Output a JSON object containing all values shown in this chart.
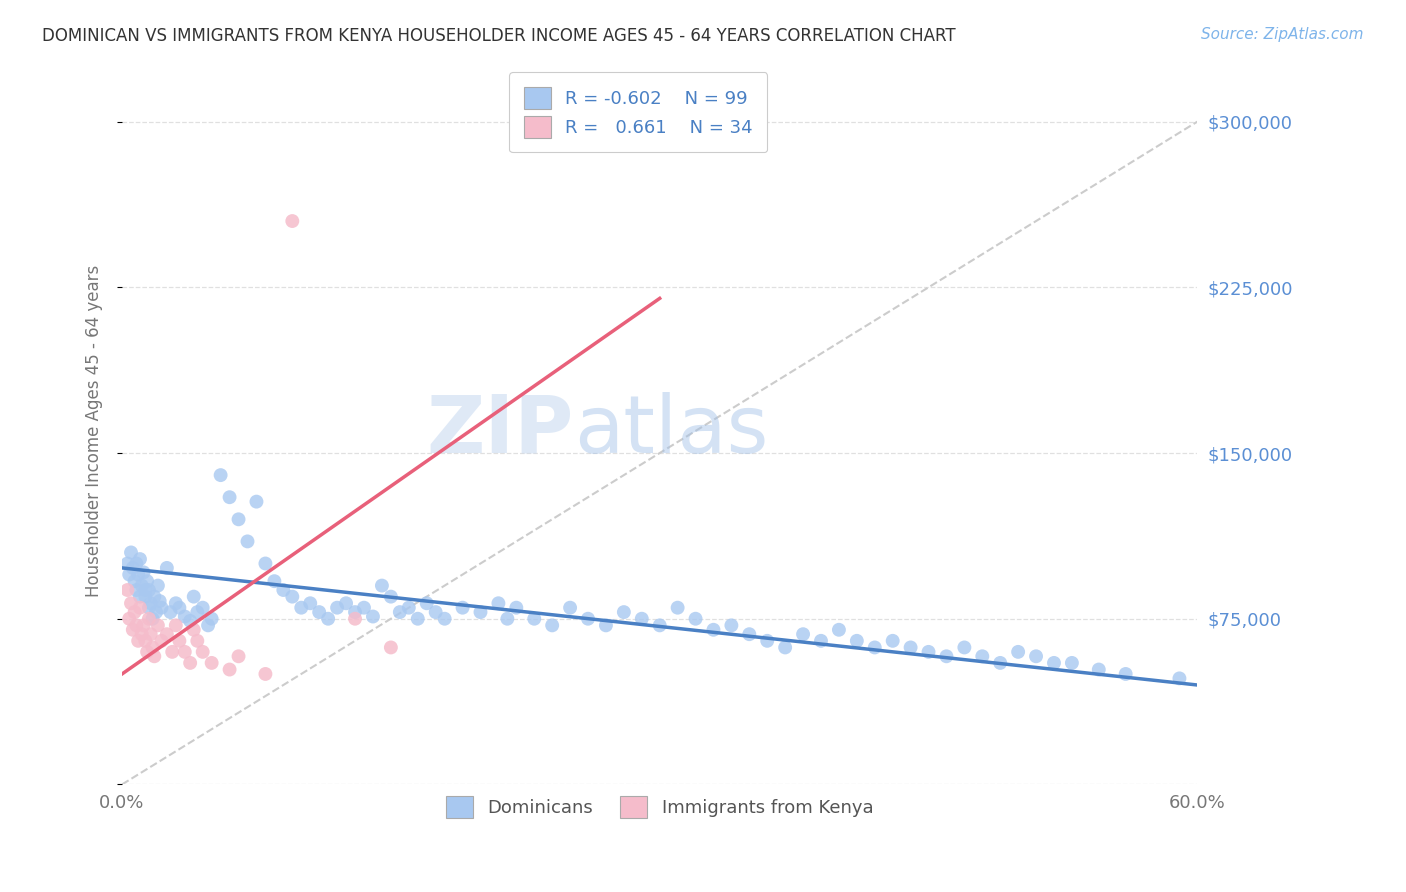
{
  "title": "DOMINICAN VS IMMIGRANTS FROM KENYA HOUSEHOLDER INCOME AGES 45 - 64 YEARS CORRELATION CHART",
  "source": "Source: ZipAtlas.com",
  "ylabel": "Householder Income Ages 45 - 64 years",
  "xlim": [
    0.0,
    0.6
  ],
  "ylim": [
    0,
    320000
  ],
  "yticks": [
    0,
    75000,
    150000,
    225000,
    300000
  ],
  "ytick_labels": [
    "",
    "$75,000",
    "$150,000",
    "$225,000",
    "$300,000"
  ],
  "xticks": [
    0.0,
    0.1,
    0.2,
    0.3,
    0.4,
    0.5,
    0.6
  ],
  "watermark_zip": "ZIP",
  "watermark_atlas": "atlas",
  "blue_scatter_color": "#A8C8F0",
  "pink_scatter_color": "#F5BCCB",
  "blue_line_color": "#4A80C4",
  "pink_line_color": "#E8607A",
  "ref_line_color": "#CCCCCC",
  "grid_color": "#DDDDDD",
  "background_color": "#FFFFFF",
  "title_color": "#333333",
  "source_color": "#7EB4EA",
  "ylabel_color": "#777777",
  "tick_color": "#777777",
  "right_tick_color": "#5B8FD4",
  "dominican_x": [
    0.003,
    0.004,
    0.005,
    0.006,
    0.007,
    0.008,
    0.008,
    0.009,
    0.01,
    0.01,
    0.011,
    0.012,
    0.013,
    0.013,
    0.014,
    0.015,
    0.015,
    0.016,
    0.017,
    0.018,
    0.019,
    0.02,
    0.021,
    0.022,
    0.025,
    0.027,
    0.03,
    0.032,
    0.035,
    0.038,
    0.04,
    0.042,
    0.045,
    0.048,
    0.05,
    0.055,
    0.06,
    0.065,
    0.07,
    0.075,
    0.08,
    0.085,
    0.09,
    0.095,
    0.1,
    0.105,
    0.11,
    0.115,
    0.12,
    0.125,
    0.13,
    0.135,
    0.14,
    0.145,
    0.15,
    0.155,
    0.16,
    0.165,
    0.17,
    0.175,
    0.18,
    0.19,
    0.2,
    0.21,
    0.215,
    0.22,
    0.23,
    0.24,
    0.25,
    0.26,
    0.27,
    0.28,
    0.29,
    0.3,
    0.31,
    0.32,
    0.33,
    0.34,
    0.35,
    0.36,
    0.37,
    0.38,
    0.39,
    0.4,
    0.41,
    0.42,
    0.43,
    0.44,
    0.45,
    0.46,
    0.47,
    0.48,
    0.49,
    0.5,
    0.51,
    0.52,
    0.53,
    0.545,
    0.56,
    0.59
  ],
  "dominican_y": [
    100000,
    95000,
    105000,
    98000,
    92000,
    100000,
    88000,
    95000,
    102000,
    85000,
    90000,
    96000,
    88000,
    85000,
    92000,
    88000,
    80000,
    82000,
    75000,
    85000,
    78000,
    90000,
    83000,
    80000,
    98000,
    78000,
    82000,
    80000,
    76000,
    74000,
    85000,
    78000,
    80000,
    72000,
    75000,
    140000,
    130000,
    120000,
    110000,
    128000,
    100000,
    92000,
    88000,
    85000,
    80000,
    82000,
    78000,
    75000,
    80000,
    82000,
    78000,
    80000,
    76000,
    90000,
    85000,
    78000,
    80000,
    75000,
    82000,
    78000,
    75000,
    80000,
    78000,
    82000,
    75000,
    80000,
    75000,
    72000,
    80000,
    75000,
    72000,
    78000,
    75000,
    72000,
    80000,
    75000,
    70000,
    72000,
    68000,
    65000,
    62000,
    68000,
    65000,
    70000,
    65000,
    62000,
    65000,
    62000,
    60000,
    58000,
    62000,
    58000,
    55000,
    60000,
    58000,
    55000,
    55000,
    52000,
    50000,
    48000
  ],
  "kenya_x": [
    0.003,
    0.004,
    0.005,
    0.006,
    0.007,
    0.008,
    0.009,
    0.01,
    0.011,
    0.012,
    0.013,
    0.014,
    0.015,
    0.016,
    0.017,
    0.018,
    0.02,
    0.022,
    0.025,
    0.028,
    0.03,
    0.032,
    0.035,
    0.038,
    0.04,
    0.042,
    0.045,
    0.05,
    0.06,
    0.065,
    0.08,
    0.095,
    0.13,
    0.15
  ],
  "kenya_y": [
    88000,
    75000,
    82000,
    70000,
    78000,
    72000,
    65000,
    80000,
    68000,
    72000,
    65000,
    60000,
    75000,
    68000,
    62000,
    58000,
    72000,
    65000,
    68000,
    60000,
    72000,
    65000,
    60000,
    55000,
    70000,
    65000,
    60000,
    55000,
    52000,
    58000,
    50000,
    255000,
    75000,
    62000
  ],
  "pink_trend_x": [
    0.0,
    0.3
  ],
  "pink_trend_y": [
    50000,
    220000
  ],
  "blue_trend_x": [
    0.0,
    0.6
  ],
  "blue_trend_y": [
    98000,
    45000
  ]
}
